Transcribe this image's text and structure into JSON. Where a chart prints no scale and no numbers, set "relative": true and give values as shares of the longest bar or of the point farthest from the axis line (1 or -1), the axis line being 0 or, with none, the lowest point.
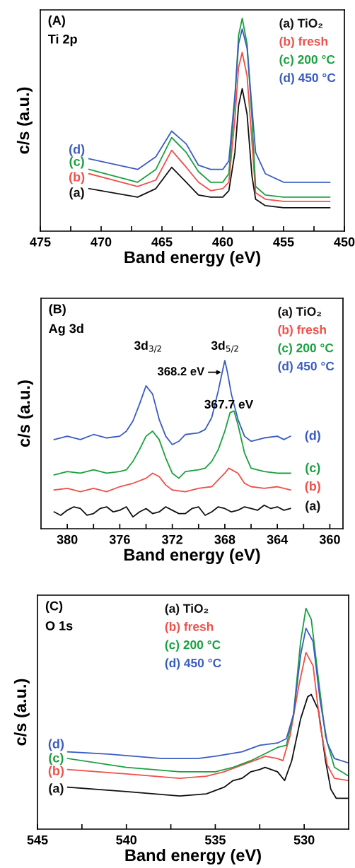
{
  "chart_data": [
    {
      "type": "line",
      "xlabel": "Band energy (eV)",
      "ylabel": "c/s (a.u.)",
      "relative": true,
      "xlim": [
        475,
        450
      ],
      "xticks": [
        475,
        {
          "value": 472.5,
          "label": null
        },
        470,
        {
          "value": 467.5,
          "label": null
        },
        465,
        {
          "value": 462.5,
          "label": null
        },
        460,
        {
          "value": 457.5,
          "label": null
        },
        455,
        {
          "value": 452.5,
          "label": null
        },
        450
      ],
      "grid": false,
      "legend": "top right",
      "marker": "none",
      "line_style": "solid",
      "series": [
        {
          "name": "(a) TiO₂",
          "color": "#111111",
          "x": [
            471,
            467,
            465.5,
            464.2,
            463,
            462,
            461,
            460,
            459.5,
            459,
            458.7,
            458.4,
            458,
            457.6,
            457.3,
            456.5,
            455,
            451.2
          ],
          "values": [
            0.2,
            0.16,
            0.2,
            0.3,
            0.23,
            0.17,
            0.16,
            0.16,
            0.19,
            0.37,
            0.59,
            0.67,
            0.55,
            0.26,
            0.15,
            0.12,
            0.11,
            0.11
          ]
        },
        {
          "name": "(b) fresh",
          "color": "#f0504a",
          "x": [
            471,
            467,
            465.5,
            464.2,
            463,
            462,
            461,
            460,
            459.5,
            459,
            458.7,
            458.4,
            458,
            457.6,
            457.3,
            456.5,
            455,
            451.2
          ],
          "values": [
            0.27,
            0.21,
            0.24,
            0.38,
            0.3,
            0.23,
            0.19,
            0.2,
            0.23,
            0.53,
            0.77,
            0.84,
            0.73,
            0.42,
            0.18,
            0.15,
            0.14,
            0.14
          ]
        },
        {
          "name": "(c) 200 °C",
          "color": "#1aa040",
          "x": [
            471,
            467,
            465.5,
            464.2,
            463,
            462,
            461,
            460,
            459.5,
            459,
            458.7,
            458.4,
            458,
            457.6,
            457.3,
            456.5,
            455,
            451.2
          ],
          "values": [
            0.29,
            0.23,
            0.29,
            0.44,
            0.37,
            0.28,
            0.23,
            0.23,
            0.27,
            0.62,
            0.92,
            1.0,
            0.88,
            0.53,
            0.21,
            0.17,
            0.16,
            0.16
          ]
        },
        {
          "name": "(d) 450 °C",
          "color": "#3a5cc0",
          "x": [
            471,
            467,
            465.5,
            464.2,
            463,
            462,
            461,
            460,
            459.5,
            459,
            458.7,
            458.4,
            458,
            457.6,
            457.3,
            456.5,
            455,
            451.2
          ],
          "values": [
            0.34,
            0.29,
            0.35,
            0.47,
            0.41,
            0.31,
            0.29,
            0.29,
            0.33,
            0.64,
            0.88,
            0.95,
            0.86,
            0.58,
            0.37,
            0.27,
            0.23,
            0.23
          ]
        }
      ],
      "annotations": [
        "(A)",
        "Ti 2p",
        "(d)",
        "(c)",
        "(b)",
        "(a)"
      ]
    },
    {
      "type": "line",
      "xlabel": "Band energy (eV)",
      "ylabel": "c/s (a.u.)",
      "relative": true,
      "xlim": [
        382,
        359
      ],
      "xticks": [
        380,
        {
          "value": 378,
          "label": null
        },
        376,
        {
          "value": 374,
          "label": null
        },
        372,
        {
          "value": 370,
          "label": null
        },
        368,
        {
          "value": 366,
          "label": null
        },
        364,
        {
          "value": 362,
          "label": null
        },
        360
      ],
      "grid": false,
      "legend": "top right",
      "marker": "none",
      "line_style": "solid",
      "series": [
        {
          "name": "(a) TiO₂",
          "color": "#111111",
          "x": [
            381,
            380.5,
            380,
            379.5,
            379,
            378.5,
            378,
            377.5,
            377,
            376.5,
            376,
            375.5,
            375,
            374.5,
            374,
            373.5,
            373,
            372.5,
            372,
            371.5,
            371,
            370.5,
            370,
            369.5,
            369,
            368.5,
            368,
            367.5,
            367,
            366.5,
            366,
            365.5,
            365,
            364.5,
            364,
            363.5,
            363
          ],
          "values": [
            0.1,
            0.08,
            0.11,
            0.13,
            0.12,
            0.08,
            0.09,
            0.12,
            0.13,
            0.1,
            0.11,
            0.13,
            0.07,
            0.1,
            0.12,
            0.09,
            0.1,
            0.13,
            0.11,
            0.09,
            0.09,
            0.12,
            0.13,
            0.08,
            0.1,
            0.13,
            0.12,
            0.1,
            0.11,
            0.13,
            0.12,
            0.11,
            0.14,
            0.12,
            0.13,
            0.11,
            0.12
          ]
        },
        {
          "name": "(b) fresh",
          "color": "#f0504a",
          "x": [
            381,
            380,
            379,
            378,
            377,
            376,
            375,
            374,
            373.5,
            373,
            372.5,
            372,
            371,
            370,
            369,
            368.5,
            368,
            367.7,
            367,
            366.5,
            366,
            365,
            364,
            363
          ],
          "values": [
            0.23,
            0.24,
            0.22,
            0.24,
            0.22,
            0.25,
            0.27,
            0.3,
            0.33,
            0.31,
            0.26,
            0.23,
            0.22,
            0.24,
            0.25,
            0.29,
            0.33,
            0.36,
            0.33,
            0.27,
            0.25,
            0.24,
            0.25,
            0.23
          ]
        },
        {
          "name": "(c) 200 °C",
          "color": "#1aa040",
          "x": [
            381,
            380,
            379,
            378,
            377,
            376,
            375.5,
            375,
            374.5,
            374,
            373.5,
            373,
            372.5,
            372,
            371.5,
            371,
            370,
            369.5,
            369,
            368.5,
            368,
            367.6,
            367.3,
            367,
            366.5,
            366,
            365,
            364,
            363
          ],
          "values": [
            0.32,
            0.34,
            0.33,
            0.35,
            0.33,
            0.34,
            0.35,
            0.4,
            0.47,
            0.55,
            0.58,
            0.53,
            0.42,
            0.33,
            0.3,
            0.34,
            0.35,
            0.36,
            0.4,
            0.47,
            0.58,
            0.69,
            0.7,
            0.62,
            0.45,
            0.36,
            0.34,
            0.33,
            0.33
          ]
        },
        {
          "name": "(d) 450 °C",
          "color": "#3a5cc0",
          "x": [
            381,
            380,
            379,
            378,
            377,
            376,
            375.5,
            375,
            374.5,
            374,
            373.5,
            373,
            372.5,
            372,
            371.5,
            371,
            370,
            369.5,
            369,
            368.5,
            368.2,
            368,
            367.8,
            367.5,
            367,
            366.5,
            366,
            365,
            364,
            363.5,
            363
          ],
          "values": [
            0.53,
            0.55,
            0.53,
            0.56,
            0.54,
            0.55,
            0.58,
            0.64,
            0.74,
            0.85,
            0.8,
            0.65,
            0.55,
            0.5,
            0.52,
            0.56,
            0.57,
            0.59,
            0.66,
            0.82,
            0.93,
            1.0,
            0.93,
            0.8,
            0.65,
            0.55,
            0.52,
            0.54,
            0.55,
            0.53,
            0.55
          ]
        }
      ],
      "annotations": [
        "(B)",
        "Ag 3d",
        "3d$_{3/2}$",
        "3d$_{5/2}$",
        {
          "text": "368.2 eV",
          "x": 368.2,
          "y": 0.93
        },
        {
          "text": "367.7 eV",
          "x": 367.7,
          "y": 0.7
        },
        "(d)",
        "(c)",
        "(b)",
        "(a)"
      ]
    },
    {
      "type": "line",
      "xlabel": "Band energy (eV)",
      "ylabel": "c/s (a.u.)",
      "relative": true,
      "xlim": [
        545,
        527.5
      ],
      "xticks": [
        545,
        {
          "value": 542.5,
          "label": null
        },
        540,
        {
          "value": 537.5,
          "label": null
        },
        535,
        {
          "value": 532.5,
          "label": null
        },
        530
      ],
      "grid": false,
      "legend": "top",
      "marker": "none",
      "line_style": "solid",
      "series": [
        {
          "name": "(a) TiO₂",
          "color": "#111111",
          "x": [
            543.3,
            540,
            537,
            535.5,
            534.5,
            534,
            533.5,
            533,
            532.5,
            532.2,
            531.5,
            531.1,
            530.7,
            530.2,
            529.8,
            529.6,
            529.2,
            528.8,
            528.5,
            528.2,
            527.5
          ],
          "values": [
            0.19,
            0.17,
            0.15,
            0.16,
            0.19,
            0.22,
            0.23,
            0.26,
            0.27,
            0.28,
            0.26,
            0.22,
            0.31,
            0.5,
            0.6,
            0.61,
            0.54,
            0.31,
            0.18,
            0.14,
            0.14
          ]
        },
        {
          "name": "(b) fresh",
          "color": "#f0504a",
          "x": [
            543.3,
            540,
            537,
            535.5,
            534.5,
            533.5,
            532.5,
            532.2,
            531.5,
            531.2,
            530.8,
            530.3,
            529.9,
            529.5,
            529.1,
            528.7,
            528.3,
            527.5
          ],
          "values": [
            0.27,
            0.25,
            0.23,
            0.24,
            0.26,
            0.29,
            0.32,
            0.33,
            0.32,
            0.31,
            0.42,
            0.65,
            0.8,
            0.74,
            0.47,
            0.29,
            0.23,
            0.22
          ]
        },
        {
          "name": "(c) 200 °C",
          "color": "#1aa040",
          "x": [
            543.3,
            540,
            537,
            535,
            534,
            533,
            532,
            531.5,
            531,
            530.6,
            530.2,
            529.9,
            529.6,
            529.2,
            528.8,
            528.3,
            527.5
          ],
          "values": [
            0.32,
            0.28,
            0.26,
            0.26,
            0.28,
            0.31,
            0.35,
            0.37,
            0.38,
            0.52,
            0.85,
            1.0,
            0.95,
            0.68,
            0.42,
            0.28,
            0.24
          ]
        },
        {
          "name": "(d) 450 °C",
          "color": "#3a5cc0",
          "x": [
            543.3,
            541,
            538,
            536,
            535,
            533.5,
            532.5,
            531.5,
            531,
            530.6,
            530.2,
            529.9,
            529.5,
            529.1,
            528.7,
            528.3,
            527.5
          ],
          "values": [
            0.35,
            0.34,
            0.32,
            0.32,
            0.33,
            0.35,
            0.38,
            0.39,
            0.41,
            0.52,
            0.79,
            0.91,
            0.85,
            0.58,
            0.39,
            0.32,
            0.3
          ]
        }
      ],
      "annotations": [
        "(C)",
        "O 1s",
        "(d)",
        "(c)",
        "(b)",
        "(a)"
      ]
    }
  ]
}
